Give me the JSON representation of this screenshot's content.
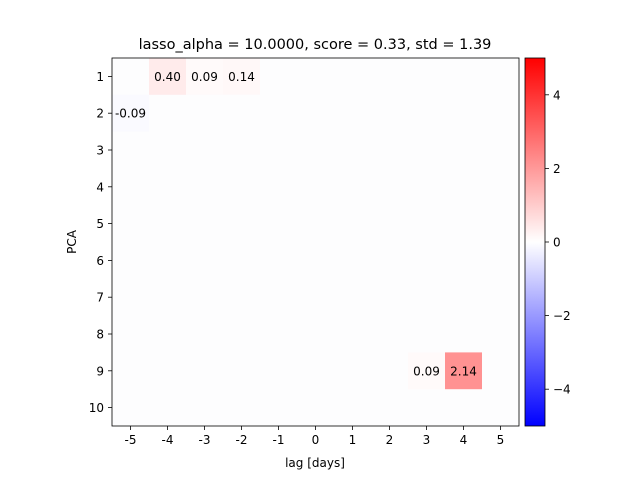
{
  "chart_data": {
    "type": "heatmap",
    "title": "lasso_alpha = 10.0000, score = 0.33, std = 1.39",
    "xlabel": "lag [days]",
    "ylabel": "PCA",
    "x_categories": [
      "-5",
      "-4",
      "-3",
      "-2",
      "-1",
      "0",
      "1",
      "2",
      "3",
      "4",
      "5"
    ],
    "y_categories": [
      "1",
      "2",
      "3",
      "4",
      "5",
      "6",
      "7",
      "8",
      "9",
      "10"
    ],
    "cells": [
      {
        "x": "-4",
        "y": "1",
        "value": 0.4,
        "label": "0.40"
      },
      {
        "x": "-3",
        "y": "1",
        "value": 0.09,
        "label": "0.09"
      },
      {
        "x": "-2",
        "y": "1",
        "value": 0.14,
        "label": "0.14"
      },
      {
        "x": "-5",
        "y": "2",
        "value": -0.09,
        "label": "-0.09"
      },
      {
        "x": "3",
        "y": "9",
        "value": 0.09,
        "label": "0.09"
      },
      {
        "x": "4",
        "y": "9",
        "value": 2.14,
        "label": "2.14"
      }
    ],
    "colorbar": {
      "colormap": "bwr",
      "range": [
        -5,
        5
      ],
      "ticks": [
        -4,
        -2,
        0,
        2,
        4
      ],
      "tick_labels": [
        "−4",
        "−2",
        "0",
        "2",
        "4"
      ],
      "low_color": "#0000ff",
      "mid_color": "#ffffff",
      "high_color": "#ff0000"
    },
    "grid": false
  }
}
